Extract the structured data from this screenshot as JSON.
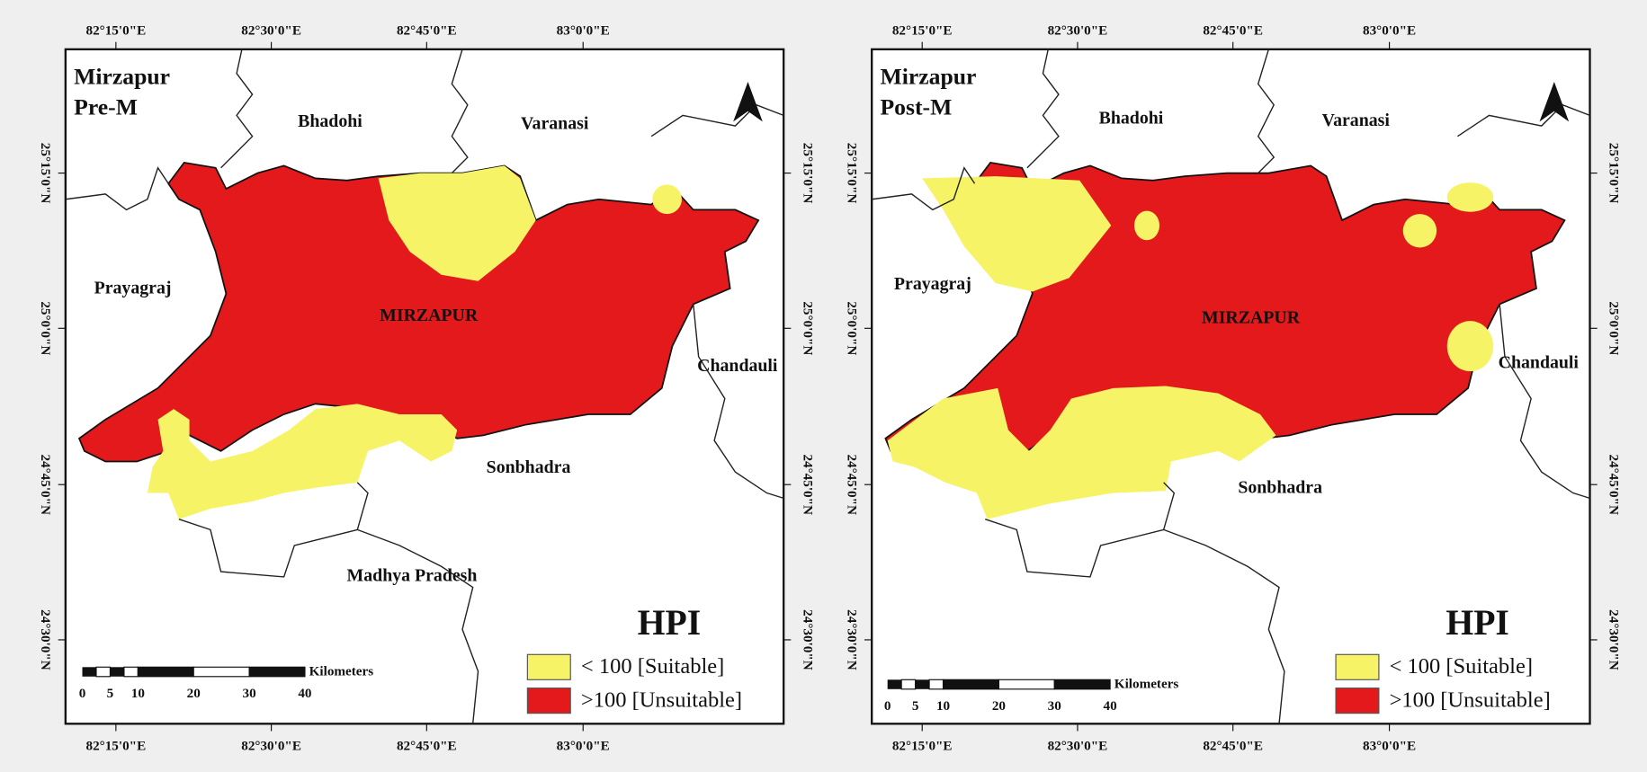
{
  "panels": [
    {
      "title": [
        "Mirzapur",
        "Pre-M"
      ],
      "top_labels": [
        "82°15'0\"E",
        "82°30'0\"E",
        "82°45'0\"E",
        "83°0'0\"E"
      ],
      "bottom_labels": [
        "82°15'0\"E",
        "82°30'0\"E",
        "82°45'0\"E",
        "83°0'0\"E"
      ],
      "left_labels": [
        "25°15'0\"N",
        "25°0'0\"N",
        "24°45'0\"N",
        "24°30'0\"N"
      ],
      "right_labels": [
        "25°15'0\"N",
        "25°0'0\"N",
        "24°45'0\"N",
        "24°30'0\"N"
      ],
      "places": [
        "Bhadohi",
        "Varanasi",
        "Prayagraj",
        "MIRZAPUR",
        "Chandauli",
        "Sonbhadra",
        "Madhya Pradesh"
      ],
      "legend": {
        "title": "HPI",
        "items": [
          {
            "label": "< 100 [Suitable]",
            "color": "#f6f466"
          },
          {
            "label": ">100 [Unsuitable]",
            "color": "#e3191c"
          }
        ]
      },
      "scale": {
        "unit": "Kilometers",
        "ticks": [
          0,
          5,
          10,
          20,
          30,
          40
        ]
      }
    },
    {
      "title": [
        "Mirzapur",
        "Post-M"
      ],
      "top_labels": [
        "82°15'0\"E",
        "82°30'0\"E",
        "82°45'0\"E",
        "83°0'0\"E"
      ],
      "bottom_labels": [
        "82°15'0\"E",
        "82°30'0\"E",
        "82°45'0\"E",
        "83°0'0\"E"
      ],
      "left_labels": [
        "25°15'0\"N",
        "25°0'0\"N",
        "24°45'0\"N",
        "24°30'0\"N"
      ],
      "right_labels": [
        "25°15'0\"N",
        "25°0'0\"N",
        "24°45'0\"N",
        "24°30'0\"N"
      ],
      "places": [
        "Bhadohi",
        "Varanasi",
        "Prayagraj",
        "MIRZAPUR",
        "Chandauli",
        "Sonbhadra"
      ],
      "legend": {
        "title": "HPI",
        "items": [
          {
            "label": "< 100 [Suitable]",
            "color": "#f6f466"
          },
          {
            "label": ">100 [Unsuitable]",
            "color": "#e3191c"
          }
        ]
      },
      "scale": {
        "unit": "Kilometers",
        "ticks": [
          0,
          5,
          10,
          20,
          30,
          40
        ]
      }
    }
  ]
}
